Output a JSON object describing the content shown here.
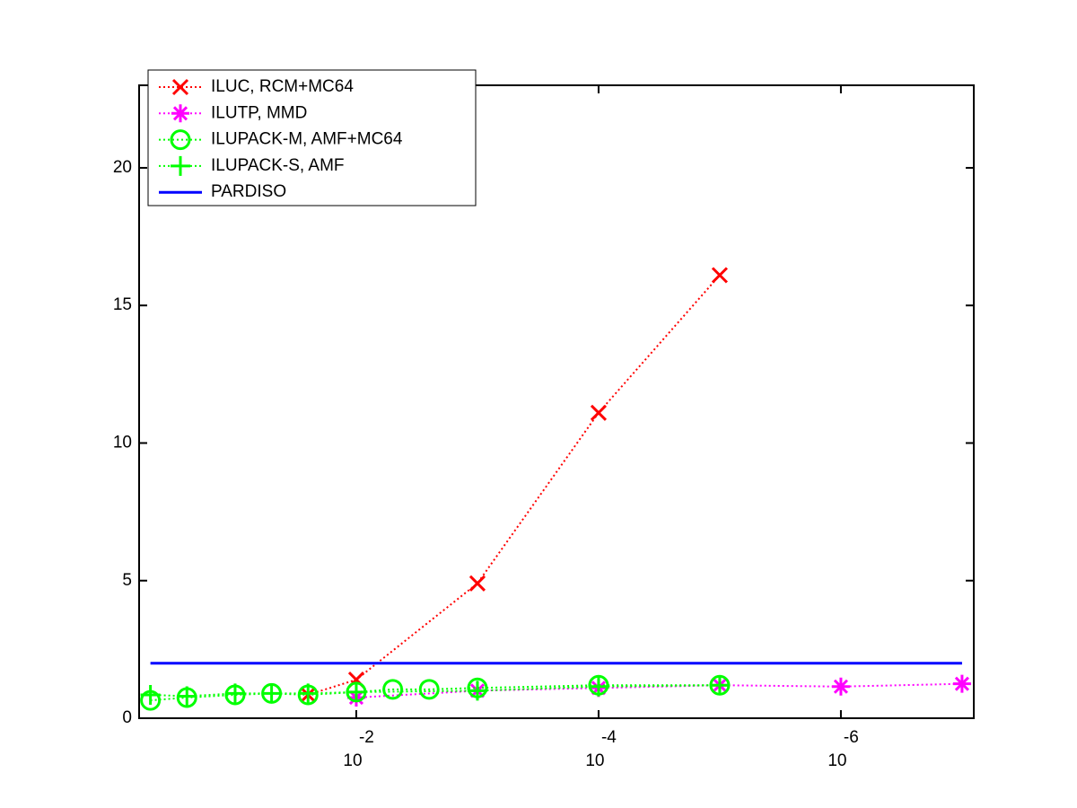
{
  "chart_data": {
    "type": "line",
    "x_scale": "log",
    "x_reversed": true,
    "xlim": [
      0.62,
      8e-08
    ],
    "xticks": [
      {
        "value": 0.01,
        "label": "10",
        "exponent": "-2"
      },
      {
        "value": 0.0001,
        "label": "10",
        "exponent": "-4"
      },
      {
        "value": 1e-06,
        "label": "10",
        "exponent": "-6"
      }
    ],
    "ylim": [
      0,
      23
    ],
    "yticks": [
      0,
      5,
      10,
      15,
      20
    ],
    "legend": "upper left",
    "series": [
      {
        "name": "ILUC, RCM+MC64",
        "color": "#ff0000",
        "marker": "x",
        "linestyle": "dotted",
        "x": [
          0.025,
          0.01,
          0.001,
          0.0001,
          1e-05
        ],
        "values": [
          0.85,
          1.4,
          4.9,
          11.1,
          16.1
        ]
      },
      {
        "name": "ILUTP, MMD",
        "color": "#ff00ff",
        "marker": "*",
        "linestyle": "dotted",
        "x": [
          0.01,
          0.001,
          0.0001,
          1e-05,
          1e-06,
          1e-07
        ],
        "values": [
          0.75,
          1.0,
          1.1,
          1.2,
          1.15,
          1.25
        ]
      },
      {
        "name": "ILUPACK-M, AMF+MC64",
        "color": "#00ff00",
        "marker": "o",
        "linestyle": "dotted",
        "x": [
          0.5,
          0.25,
          0.1,
          0.05,
          0.025,
          0.01,
          0.005,
          0.0025,
          0.001,
          0.0001,
          1e-05
        ],
        "values": [
          0.65,
          0.75,
          0.85,
          0.9,
          0.85,
          0.95,
          1.05,
          1.05,
          1.1,
          1.2,
          1.2
        ]
      },
      {
        "name": "ILUPACK-S, AMF",
        "color": "#00ff00",
        "marker": "+",
        "linestyle": "dotted",
        "x": [
          0.5,
          0.25,
          0.1,
          0.05,
          0.025,
          0.01,
          0.001,
          0.0001,
          1e-05
        ],
        "values": [
          0.85,
          0.8,
          0.9,
          0.9,
          0.9,
          0.95,
          1.0,
          1.15,
          1.2
        ]
      },
      {
        "name": "PARDISO",
        "color": "#0000ff",
        "marker": "none",
        "linestyle": "solid",
        "x": [
          0.5,
          1e-07
        ],
        "values": [
          2,
          2
        ]
      }
    ]
  }
}
